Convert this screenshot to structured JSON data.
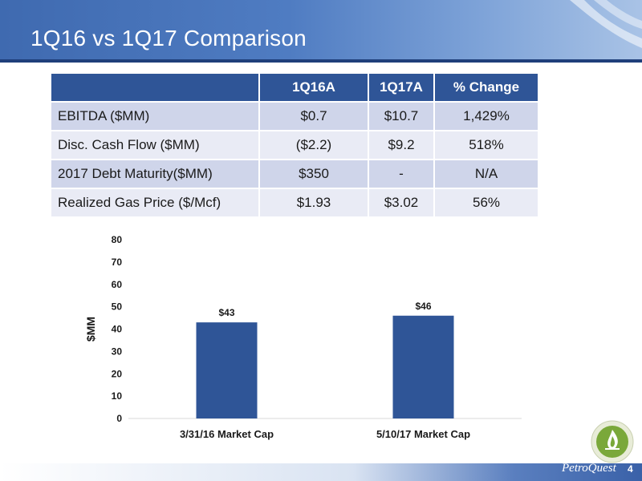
{
  "slide": {
    "title": "1Q16 vs 1Q17 Comparison",
    "page_number": "4",
    "logo_text": "PetroQuest"
  },
  "table": {
    "headers": [
      "",
      "1Q16A",
      "1Q17A",
      "% Change"
    ],
    "rows": [
      [
        "EBITDA ($MM)",
        "$0.7",
        "$10.7",
        "1,429%"
      ],
      [
        "Disc. Cash Flow ($MM)",
        "($2.2)",
        "$9.2",
        "518%"
      ],
      [
        "2017 Debt Maturity($MM)",
        "$350",
        "-",
        "N/A"
      ],
      [
        "Realized Gas Price ($/Mcf)",
        "$1.93",
        "$3.02",
        "56%"
      ]
    ]
  },
  "chart_data": {
    "type": "bar",
    "categories": [
      "3/31/16 Market Cap",
      "5/10/17 Market Cap"
    ],
    "values": [
      43,
      46
    ],
    "data_labels": [
      "$43",
      "$46"
    ],
    "ylabel": "$MM",
    "ylim": [
      0,
      80
    ],
    "yticks": [
      0,
      10,
      20,
      30,
      40,
      50,
      60,
      70,
      80
    ],
    "grid": false,
    "bar_color": "#2f5597"
  },
  "colors": {
    "header_blue": "#4f7cc2",
    "table_header": "#2f5597",
    "row_dark": "#cfd5ea",
    "row_light": "#e9ebf5"
  }
}
